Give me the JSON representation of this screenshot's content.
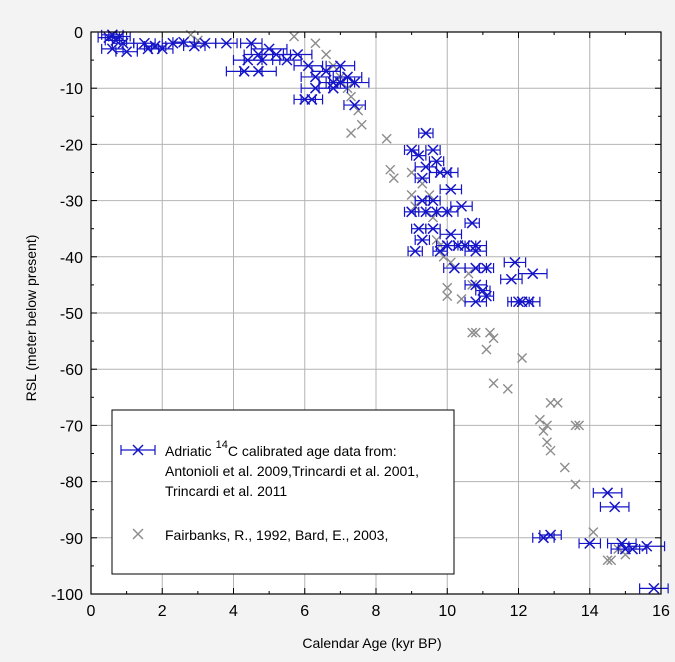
{
  "chart_data": {
    "type": "scatter",
    "xlabel": "Calendar Age (kyr BP)",
    "ylabel": "RSL (meter below present)",
    "xlim": [
      0,
      16
    ],
    "ylim": [
      -100,
      0
    ],
    "xticks": [
      0,
      2,
      4,
      6,
      8,
      10,
      12,
      14,
      16
    ],
    "yticks": [
      0,
      -10,
      -20,
      -30,
      -40,
      -50,
      -60,
      -70,
      -80,
      -90,
      -100
    ],
    "grid": true,
    "legend_position": "lower-left",
    "legend": {
      "adriatic_line1_pre": "Adriatic ",
      "adriatic_sup": "14",
      "adriatic_line1_post": "C calibrated age data from:",
      "adriatic_line2": "Antonioli et al. 2009,Trincardi et al. 2001,",
      "adriatic_line3": "Trincardi et al. 2011",
      "fairbanks": "Fairbanks, R., 1992, Bard, E., 2003,"
    },
    "series": [
      {
        "color": "#1414c8",
        "marker": "x-with-horizontal-errorbar",
        "points": [
          [
            0.5,
            -1,
            0.3
          ],
          [
            0.6,
            -0.5,
            0.3
          ],
          [
            0.7,
            -1.5,
            0.3
          ],
          [
            0.8,
            -0.8,
            0.3
          ],
          [
            0.9,
            -2,
            0.3
          ],
          [
            0.6,
            -3,
            0.3
          ],
          [
            1.0,
            -3.5,
            0.3
          ],
          [
            1.5,
            -2,
            0.3
          ],
          [
            1.6,
            -3,
            0.3
          ],
          [
            1.8,
            -2.5,
            0.3
          ],
          [
            2.0,
            -3,
            0.3
          ],
          [
            2.3,
            -2,
            0.3
          ],
          [
            2.6,
            -1.8,
            0.3
          ],
          [
            2.9,
            -2.5,
            0.3
          ],
          [
            3.2,
            -2,
            0.3
          ],
          [
            3.8,
            -2,
            0.3
          ],
          [
            4.5,
            -2,
            0.3
          ],
          [
            4.7,
            -4,
            0.4
          ],
          [
            4.8,
            -5,
            0.5
          ],
          [
            5.0,
            -3,
            0.5
          ],
          [
            5.2,
            -4,
            0.4
          ],
          [
            5.5,
            -5,
            0.4
          ],
          [
            5.8,
            -4,
            0.4
          ],
          [
            4.4,
            -5,
            0.4
          ],
          [
            4.3,
            -7,
            0.5
          ],
          [
            4.7,
            -7,
            0.5
          ],
          [
            6.1,
            -6,
            0.4
          ],
          [
            6.3,
            -8,
            0.4
          ],
          [
            6.6,
            -7,
            0.4
          ],
          [
            6.8,
            -9,
            0.4
          ],
          [
            7.0,
            -6,
            0.4
          ],
          [
            7.2,
            -8,
            0.4
          ],
          [
            6.3,
            -10,
            0.4
          ],
          [
            6.8,
            -10,
            0.4
          ],
          [
            7.0,
            -9,
            0.4
          ],
          [
            7.4,
            -9,
            0.4
          ],
          [
            6.0,
            -12,
            0.3
          ],
          [
            6.2,
            -12,
            0.3
          ],
          [
            7.4,
            -13,
            0.3
          ],
          [
            9.4,
            -18,
            0.2
          ],
          [
            9.0,
            -21,
            0.2
          ],
          [
            9.2,
            -22,
            0.2
          ],
          [
            9.6,
            -21,
            0.2
          ],
          [
            9.4,
            -24,
            0.3
          ],
          [
            9.7,
            -23,
            0.2
          ],
          [
            9.8,
            -25,
            0.3
          ],
          [
            9.3,
            -26,
            0.2
          ],
          [
            10.0,
            -25,
            0.3
          ],
          [
            10.1,
            -28,
            0.3
          ],
          [
            9.3,
            -30,
            0.2
          ],
          [
            9.6,
            -30,
            0.2
          ],
          [
            9.0,
            -32,
            0.2
          ],
          [
            9.4,
            -32,
            0.3
          ],
          [
            9.7,
            -32,
            0.3
          ],
          [
            10.0,
            -32,
            0.3
          ],
          [
            10.4,
            -31,
            0.3
          ],
          [
            10.7,
            -34,
            0.2
          ],
          [
            9.2,
            -35,
            0.2
          ],
          [
            9.6,
            -35,
            0.2
          ],
          [
            10.1,
            -36,
            0.3
          ],
          [
            9.3,
            -37,
            0.2
          ],
          [
            10.0,
            -38,
            0.3
          ],
          [
            10.3,
            -38,
            0.3
          ],
          [
            10.5,
            -38,
            0.3
          ],
          [
            10.8,
            -38,
            0.3
          ],
          [
            9.1,
            -39,
            0.2
          ],
          [
            9.8,
            -39,
            0.2
          ],
          [
            10.8,
            -39,
            0.3
          ],
          [
            10.2,
            -42,
            0.3
          ],
          [
            10.8,
            -42,
            0.3
          ],
          [
            11.1,
            -42,
            0.2
          ],
          [
            10.8,
            -45,
            0.3
          ],
          [
            11.0,
            -46,
            0.2
          ],
          [
            10.8,
            -48,
            0.3
          ],
          [
            11.1,
            -47,
            0.2
          ],
          [
            11.9,
            -41,
            0.3
          ],
          [
            12.4,
            -43,
            0.4
          ],
          [
            11.8,
            -44,
            0.3
          ],
          [
            12.0,
            -48,
            0.3
          ],
          [
            12.1,
            -48,
            0.3
          ],
          [
            12.3,
            -48,
            0.3
          ],
          [
            12.7,
            -90,
            0.3
          ],
          [
            12.9,
            -89.5,
            0.3
          ],
          [
            14.0,
            -91,
            0.3
          ],
          [
            14.5,
            -82,
            0.4
          ],
          [
            14.7,
            -84.5,
            0.4
          ],
          [
            14.9,
            -91,
            0.4
          ],
          [
            15.0,
            -92,
            0.4
          ],
          [
            15.2,
            -92,
            0.4
          ],
          [
            15.6,
            -91.5,
            0.5
          ],
          [
            15.8,
            -99,
            0.4
          ]
        ]
      },
      {
        "color": "#8c8c8c",
        "marker": "x",
        "points": [
          [
            2.8,
            -0.5
          ],
          [
            3.0,
            -1.5
          ],
          [
            5.7,
            -0.8
          ],
          [
            6.3,
            -2
          ],
          [
            6.6,
            -4
          ],
          [
            6.8,
            -6
          ],
          [
            7.0,
            -8
          ],
          [
            7.2,
            -10
          ],
          [
            7.3,
            -11.5
          ],
          [
            7.5,
            -14
          ],
          [
            7.6,
            -16.5
          ],
          [
            7.3,
            -18
          ],
          [
            8.3,
            -19
          ],
          [
            8.4,
            -24.5
          ],
          [
            8.5,
            -26
          ],
          [
            9.0,
            -25
          ],
          [
            9.0,
            -29
          ],
          [
            9.1,
            -31
          ],
          [
            9.3,
            -27
          ],
          [
            9.5,
            -29
          ],
          [
            9.6,
            -33
          ],
          [
            9.7,
            -37
          ],
          [
            9.8,
            -38
          ],
          [
            9.9,
            -40
          ],
          [
            10.1,
            -41
          ],
          [
            10.0,
            -45.5
          ],
          [
            10.0,
            -47
          ],
          [
            10.4,
            -47.5
          ],
          [
            10.6,
            -43
          ],
          [
            10.7,
            -45
          ],
          [
            10.7,
            -53.5
          ],
          [
            10.8,
            -53.5
          ],
          [
            11.2,
            -53.5
          ],
          [
            11.3,
            -54.5
          ],
          [
            11.1,
            -56.5
          ],
          [
            11.3,
            -62.5
          ],
          [
            11.7,
            -63.5
          ],
          [
            12.1,
            -58
          ],
          [
            12.6,
            -69
          ],
          [
            12.7,
            -71
          ],
          [
            12.8,
            -70
          ],
          [
            12.9,
            -66
          ],
          [
            13.1,
            -66
          ],
          [
            12.8,
            -73
          ],
          [
            12.9,
            -74.5
          ],
          [
            13.3,
            -77.5
          ],
          [
            13.6,
            -70
          ],
          [
            13.7,
            -70
          ],
          [
            13.6,
            -80.5
          ],
          [
            14.1,
            -89
          ],
          [
            14.5,
            -94
          ],
          [
            14.6,
            -94
          ],
          [
            14.8,
            -92
          ],
          [
            15.0,
            -93
          ]
        ]
      }
    ]
  }
}
